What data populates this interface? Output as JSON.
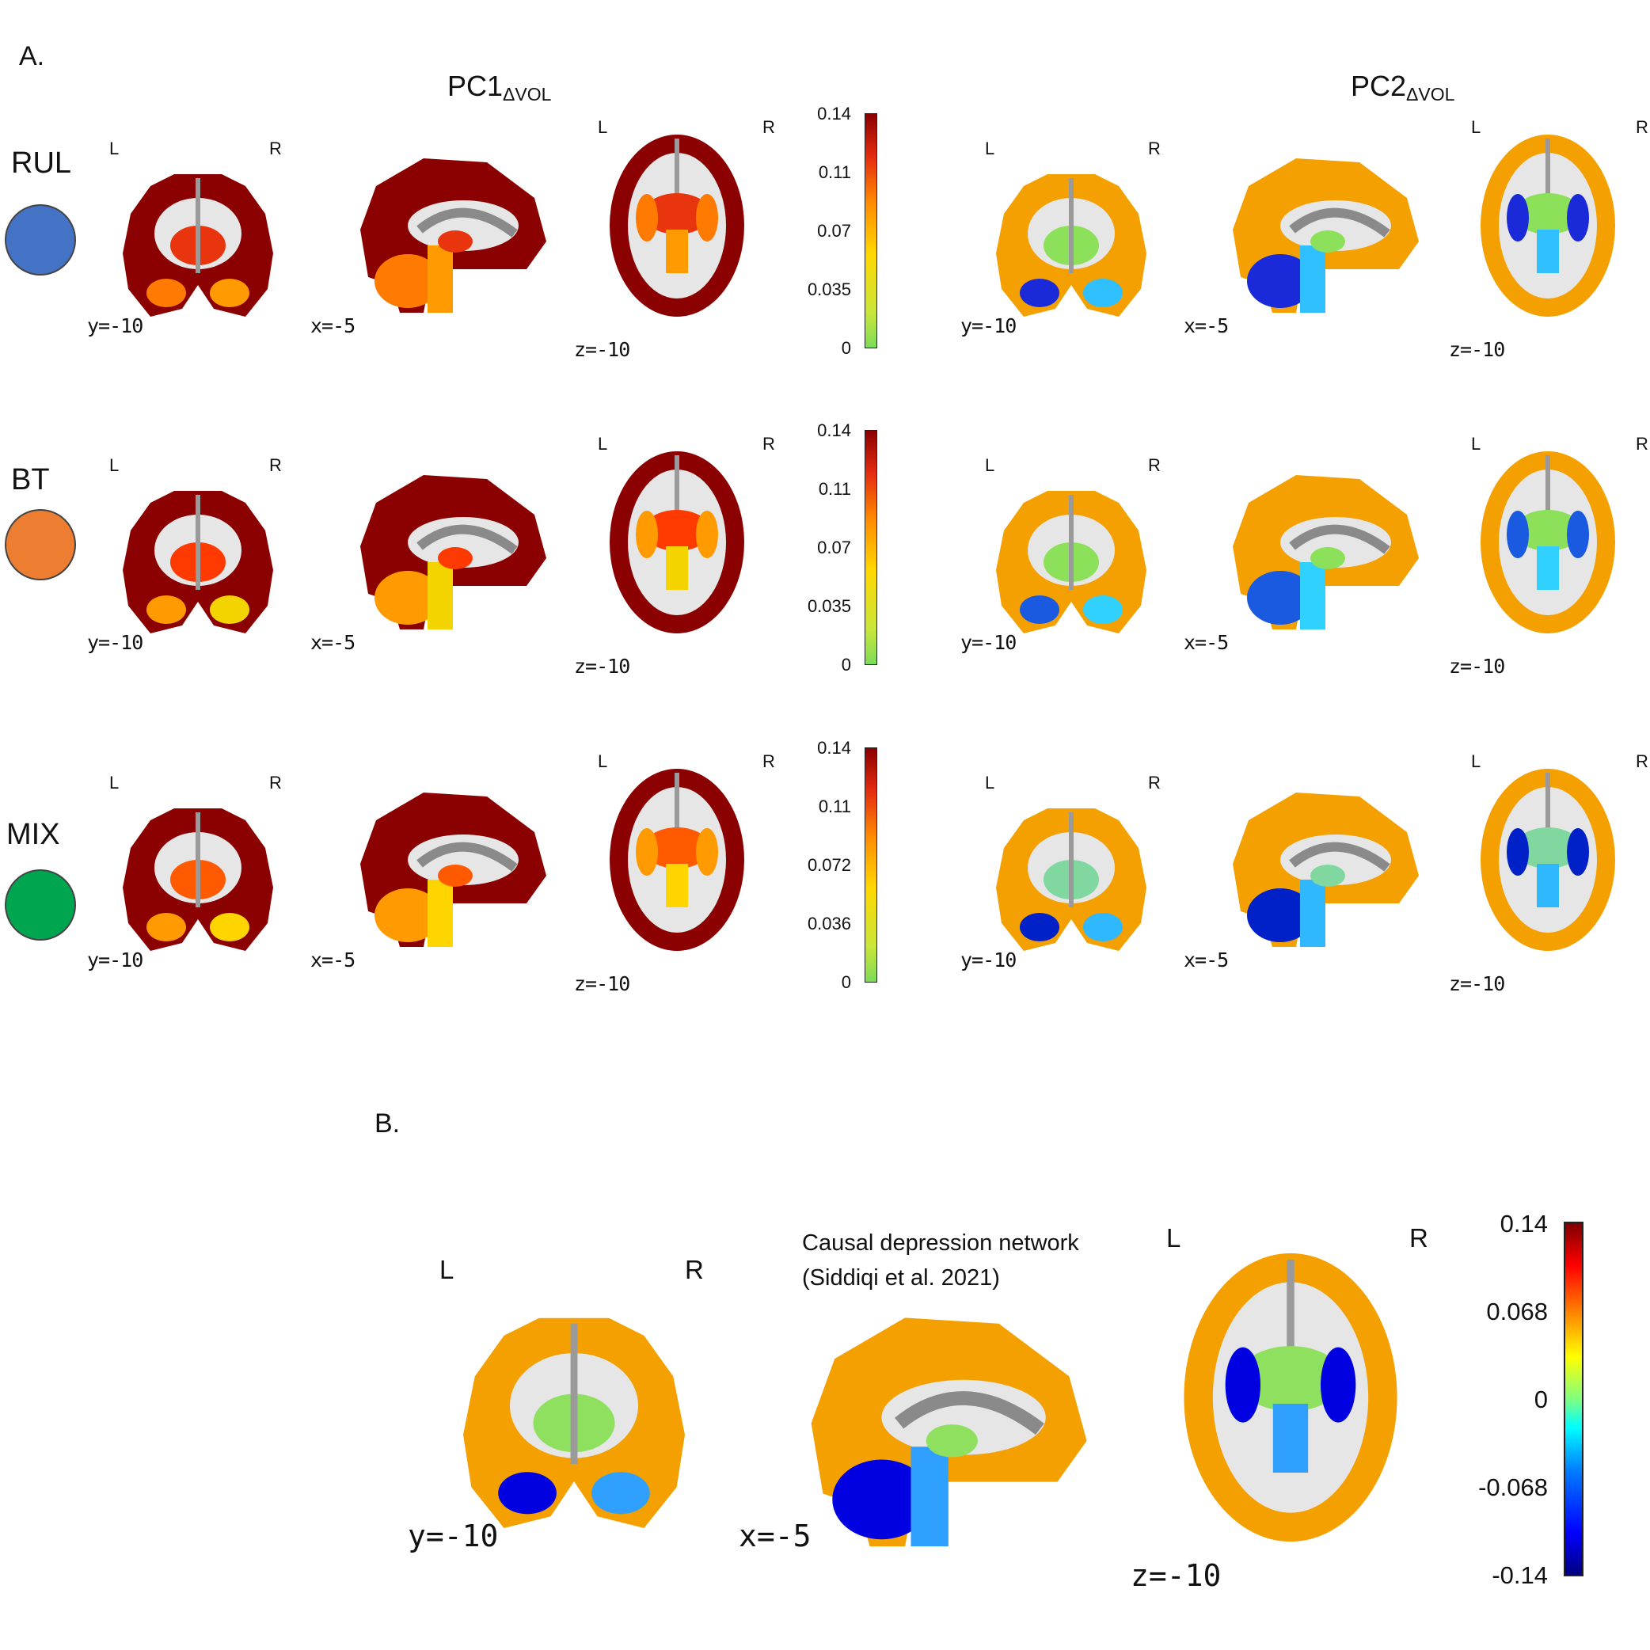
{
  "panel_a": {
    "letter": "A.",
    "pc1_title": "PC1",
    "pc1_sub": "ΔVOL",
    "pc2_title": "PC2",
    "pc2_sub": "ΔVOL",
    "rows": [
      {
        "label": "RUL",
        "dot_color": "#4472c4",
        "colorbar_ticks": [
          "0.14",
          "0.11",
          "0.07",
          "0.035",
          "0"
        ]
      },
      {
        "label": "BT",
        "dot_color": "#ed7d31",
        "colorbar_ticks": [
          "0.14",
          "0.11",
          "0.07",
          "0.035",
          "0"
        ]
      },
      {
        "label": "MIX",
        "dot_color": "#00a550",
        "colorbar_ticks": [
          "0.14",
          "0.11",
          "0.072",
          "0.036",
          "0"
        ]
      }
    ],
    "left_label": "L",
    "right_label": "R",
    "coronal_coord": "y=-10",
    "sagittal_coord": "x=-5",
    "axial_coord": "z=-10"
  },
  "panel_b": {
    "letter": "B.",
    "caption_line1": "Causal depression network",
    "caption_line2": "(Siddiqi et al. 2021)",
    "left_label": "L",
    "right_label": "R",
    "coronal_coord": "y=-10",
    "sagittal_coord": "x=-5",
    "axial_coord": "z=-10",
    "colorbar_ticks": [
      "0.14",
      "0.068",
      "0",
      "-0.068",
      "-0.14"
    ]
  },
  "colors": {
    "pc1_rul": [
      "#8b0000",
      "#c81414",
      "#e8350e",
      "#ff7a00",
      "#ff9a00"
    ],
    "pc1_bt": [
      "#8b0000",
      "#c81414",
      "#ff3a00",
      "#ff9a00",
      "#f4d400"
    ],
    "pc1_mix": [
      "#8b0000",
      "#c81414",
      "#ff5a00",
      "#ff9a00",
      "#ffd500"
    ],
    "pc2_rul": [
      "#f4a000",
      "#ffd800",
      "#8de05a",
      "#1a2ad8",
      "#30c0ff"
    ],
    "pc2_bt": [
      "#f4a000",
      "#c8e84a",
      "#8de05a",
      "#1a5ae0",
      "#30d0ff"
    ],
    "pc2_mix": [
      "#f4a000",
      "#e8c020",
      "#80d8a0",
      "#0020c8",
      "#30b8ff"
    ],
    "pc_b": [
      "#f4a000",
      "#40e0ff",
      "#90e060",
      "#0000e0",
      "#30a0ff"
    ]
  }
}
